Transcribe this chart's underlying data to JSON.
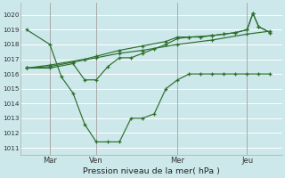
{
  "title": "Pression niveau de la mer( hPa )",
  "bg_color": "#cce8ea",
  "grid_color": "#ffffff",
  "line_color": "#2d6e2d",
  "ylim": [
    1010.5,
    1020.8
  ],
  "yticks": [
    1011,
    1012,
    1013,
    1014,
    1015,
    1016,
    1017,
    1018,
    1019,
    1020
  ],
  "xtick_labels": [
    "Mar",
    "Ven",
    "Mer",
    "Jeu"
  ],
  "xtick_positions": [
    2,
    6,
    13,
    19
  ],
  "vlines": [
    2,
    6,
    13,
    19
  ],
  "xlim": [
    -0.5,
    22
  ],
  "series1_x": [
    0,
    2,
    3,
    4,
    5,
    6,
    7,
    8,
    9,
    10,
    11,
    12,
    13,
    14,
    15,
    16,
    17,
    18,
    19,
    20,
    21
  ],
  "series1_y": [
    1019.0,
    1018.0,
    1015.8,
    1014.7,
    1012.6,
    1011.4,
    1011.4,
    1011.4,
    1013.0,
    1013.0,
    1013.3,
    1015.0,
    1015.6,
    1016.0,
    1016.0,
    1016.0,
    1016.0,
    1016.0,
    1016.0,
    1016.0,
    1016.0
  ],
  "series2_x": [
    0,
    2,
    4,
    6,
    8,
    10,
    13,
    16,
    19,
    21
  ],
  "series2_y": [
    1016.4,
    1016.5,
    1016.8,
    1017.1,
    1017.4,
    1017.6,
    1018.0,
    1018.3,
    1018.7,
    1018.9
  ],
  "series3_x": [
    0,
    2,
    5,
    6,
    8,
    10,
    12,
    13,
    14,
    16,
    17,
    18,
    19,
    19.5,
    20,
    21
  ],
  "series3_y": [
    1016.4,
    1016.6,
    1017.0,
    1017.2,
    1017.6,
    1017.9,
    1018.2,
    1018.5,
    1018.5,
    1018.6,
    1018.7,
    1018.8,
    1019.0,
    1020.1,
    1019.2,
    1018.8
  ],
  "series4_x": [
    0,
    2,
    4,
    5,
    6,
    7,
    8,
    9,
    10,
    11,
    12,
    13,
    14,
    15,
    16,
    17,
    18,
    19,
    19.5,
    20,
    21
  ],
  "series4_y": [
    1016.4,
    1016.4,
    1016.7,
    1015.6,
    1015.6,
    1016.5,
    1017.1,
    1017.1,
    1017.4,
    1017.7,
    1018.0,
    1018.4,
    1018.5,
    1018.5,
    1018.6,
    1018.7,
    1018.8,
    1019.0,
    1020.1,
    1019.2,
    1018.8
  ]
}
